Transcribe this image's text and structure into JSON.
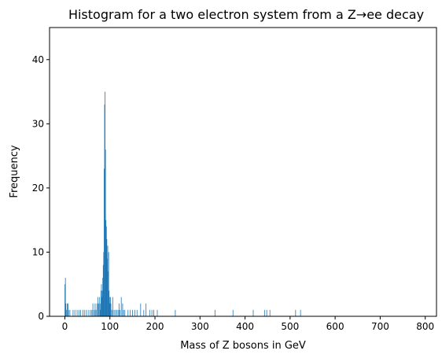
{
  "chart_data": {
    "type": "bar",
    "title": "Histogram for a two electron system from a Z→ee decay",
    "xlabel": "Mass of Z bosons in GeV",
    "ylabel": "Frequency",
    "xlim": [
      -34,
      825
    ],
    "ylim": [
      0,
      45
    ],
    "x_ticks": [
      0,
      100,
      200,
      300,
      400,
      500,
      600,
      700,
      800
    ],
    "y_ticks": [
      0,
      10,
      20,
      30,
      40
    ],
    "bar_color": "#1f77b4",
    "grid": false,
    "legend": "none",
    "bins": [
      {
        "x": 0,
        "count": 5
      },
      {
        "x": 1,
        "count": 6
      },
      {
        "x": 2,
        "count": 2
      },
      {
        "x": 3,
        "count": 1
      },
      {
        "x": 5,
        "count": 2
      },
      {
        "x": 7,
        "count": 2
      },
      {
        "x": 8,
        "count": 1
      },
      {
        "x": 11,
        "count": 1
      },
      {
        "x": 18,
        "count": 1
      },
      {
        "x": 22,
        "count": 1
      },
      {
        "x": 27,
        "count": 1
      },
      {
        "x": 31,
        "count": 1
      },
      {
        "x": 35,
        "count": 1
      },
      {
        "x": 40,
        "count": 1
      },
      {
        "x": 44,
        "count": 1
      },
      {
        "x": 48,
        "count": 1
      },
      {
        "x": 53,
        "count": 1
      },
      {
        "x": 57,
        "count": 1
      },
      {
        "x": 60,
        "count": 1
      },
      {
        "x": 62,
        "count": 2
      },
      {
        "x": 65,
        "count": 1
      },
      {
        "x": 67,
        "count": 2
      },
      {
        "x": 69,
        "count": 1
      },
      {
        "x": 71,
        "count": 2
      },
      {
        "x": 73,
        "count": 3
      },
      {
        "x": 75,
        "count": 2
      },
      {
        "x": 77,
        "count": 3
      },
      {
        "x": 78,
        "count": 2
      },
      {
        "x": 79,
        "count": 1
      },
      {
        "x": 80,
        "count": 4
      },
      {
        "x": 81,
        "count": 5
      },
      {
        "x": 82,
        "count": 3
      },
      {
        "x": 83,
        "count": 4
      },
      {
        "x": 84,
        "count": 6
      },
      {
        "x": 85,
        "count": 8
      },
      {
        "x": 86,
        "count": 10
      },
      {
        "x": 87,
        "count": 23
      },
      {
        "x": 88,
        "count": 33
      },
      {
        "x": 89,
        "count": 35
      },
      {
        "x": 90,
        "count": 26
      },
      {
        "x": 91,
        "count": 15
      },
      {
        "x": 92,
        "count": 14
      },
      {
        "x": 93,
        "count": 12
      },
      {
        "x": 94,
        "count": 9
      },
      {
        "x": 95,
        "count": 11
      },
      {
        "x": 96,
        "count": 7
      },
      {
        "x": 97,
        "count": 10
      },
      {
        "x": 98,
        "count": 4
      },
      {
        "x": 99,
        "count": 3
      },
      {
        "x": 100,
        "count": 2
      },
      {
        "x": 101,
        "count": 3
      },
      {
        "x": 102,
        "count": 2
      },
      {
        "x": 104,
        "count": 1
      },
      {
        "x": 106,
        "count": 3
      },
      {
        "x": 109,
        "count": 1
      },
      {
        "x": 112,
        "count": 1
      },
      {
        "x": 115,
        "count": 1
      },
      {
        "x": 118,
        "count": 1
      },
      {
        "x": 120,
        "count": 2
      },
      {
        "x": 122,
        "count": 1
      },
      {
        "x": 125,
        "count": 3
      },
      {
        "x": 128,
        "count": 2
      },
      {
        "x": 130,
        "count": 1
      },
      {
        "x": 133,
        "count": 1
      },
      {
        "x": 140,
        "count": 1
      },
      {
        "x": 145,
        "count": 1
      },
      {
        "x": 150,
        "count": 1
      },
      {
        "x": 155,
        "count": 1
      },
      {
        "x": 160,
        "count": 1
      },
      {
        "x": 168,
        "count": 2
      },
      {
        "x": 175,
        "count": 1
      },
      {
        "x": 180,
        "count": 2
      },
      {
        "x": 188,
        "count": 1
      },
      {
        "x": 193,
        "count": 1
      },
      {
        "x": 197,
        "count": 1
      },
      {
        "x": 205,
        "count": 1
      },
      {
        "x": 245,
        "count": 1
      },
      {
        "x": 333,
        "count": 1
      },
      {
        "x": 373,
        "count": 1
      },
      {
        "x": 418,
        "count": 1
      },
      {
        "x": 443,
        "count": 1
      },
      {
        "x": 448,
        "count": 1
      },
      {
        "x": 455,
        "count": 1
      },
      {
        "x": 512,
        "count": 1
      },
      {
        "x": 523,
        "count": 1
      }
    ]
  }
}
